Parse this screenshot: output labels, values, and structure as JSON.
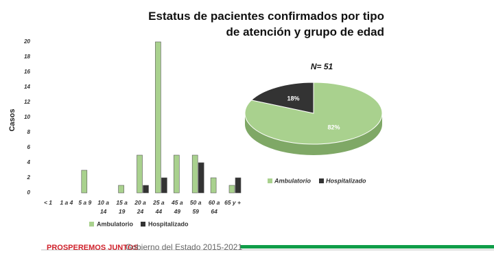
{
  "header": {
    "title": "Estatus de pacientes confirmados por tipo de atención y grupo de edad"
  },
  "chart_data": [
    {
      "type": "bar",
      "ylabel": "Casos",
      "categories": [
        "< 1",
        "1 a 4",
        "5 a 9",
        "10 a 14",
        "15 a 19",
        "20 a 24",
        "25 a 44",
        "45 a 49",
        "50 a 59",
        "60 a 64",
        "65 y +"
      ],
      "series": [
        {
          "name": "Ambulatorio",
          "color": "#a9d18e",
          "values": [
            0,
            0,
            3,
            0,
            1,
            5,
            20,
            5,
            5,
            2,
            1
          ]
        },
        {
          "name": "Hospitalizado",
          "color": "#333333",
          "values": [
            0,
            0,
            0,
            0,
            0,
            1,
            2,
            0,
            4,
            0,
            2
          ]
        }
      ],
      "ylim": [
        0,
        20
      ],
      "yticks": [
        0,
        2,
        4,
        6,
        8,
        10,
        12,
        14,
        16,
        18,
        20
      ],
      "legend": "bottom"
    },
    {
      "type": "pie",
      "title": "N= 51",
      "categories": [
        "Ambulatorio",
        "Hospitalizado"
      ],
      "values": [
        82,
        18
      ],
      "value_labels": [
        "82%",
        "18%"
      ],
      "colors": [
        "#a9d18e",
        "#333333"
      ],
      "legend": "bottom"
    }
  ],
  "footer": {
    "slogan": "PROSPEREMOS JUNTOS",
    "government": "Gobierno del Estado 2015-2021"
  }
}
